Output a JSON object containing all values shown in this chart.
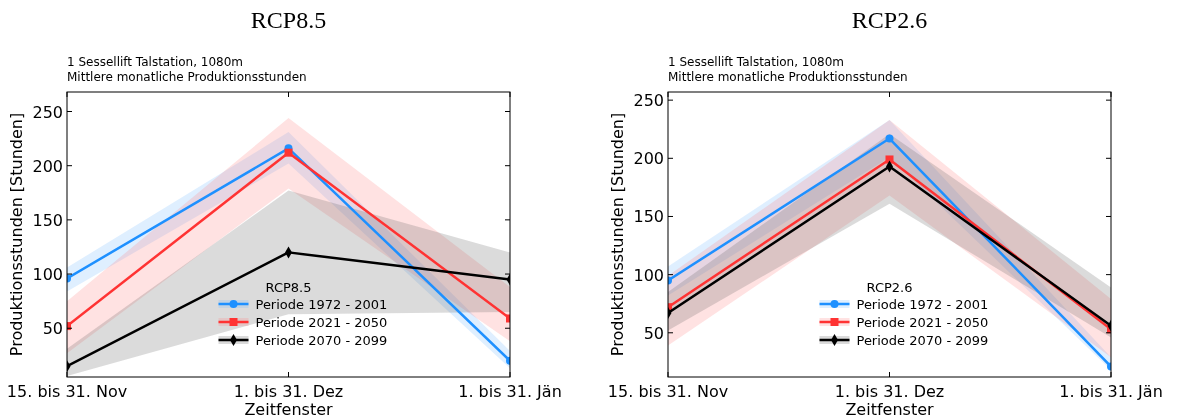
{
  "chart_data": [
    {
      "type": "line",
      "title": "RCP8.5",
      "subtitle": "1 Sessellift Talstation, 1080m\nMittlere monatliche Produktionsstunden",
      "xlabel": "Zeitfenster",
      "ylabel": "Produktionsstunden [Stunden]",
      "legend_title": "RCP8.5",
      "legend": "bottom",
      "categories": [
        "15. bis 31. Nov",
        "1. bis 31. Dez",
        "1. bis 31. Jän"
      ],
      "ylim": [
        5,
        268
      ],
      "yticks": [
        50,
        100,
        150,
        200,
        250
      ],
      "series": [
        {
          "name": "Periode 1972 - 2001",
          "color": "#1e90ff",
          "marker": "circle",
          "values": [
            96,
            216,
            20
          ],
          "lower": [
            84,
            202,
            13
          ],
          "upper": [
            106,
            231,
            29
          ]
        },
        {
          "name": "Periode 2021 - 2050",
          "color": "#ff3333",
          "marker": "square",
          "values": [
            52,
            212,
            59
          ],
          "lower": [
            27,
            179,
            38
          ],
          "upper": [
            75,
            244,
            88
          ]
        },
        {
          "name": "Periode 2070 - 2099",
          "color": "#000000",
          "marker": "diamond",
          "values": [
            15,
            120,
            95
          ],
          "lower": [
            6,
            63,
            65
          ],
          "upper": [
            31,
            177,
            120
          ]
        }
      ]
    },
    {
      "type": "line",
      "title": "RCP2.6",
      "subtitle": "1 Sessellift Talstation, 1080m\nMittlere monatliche Produktionsstunden",
      "xlabel": "Zeitfenster",
      "ylabel": "Produktionsstunden [Stunden]",
      "legend_title": "RCP2.6",
      "legend": "bottom",
      "categories": [
        "15. bis 31. Nov",
        "1. bis 31. Dez",
        "1. bis 31. Jän"
      ],
      "ylim": [
        12,
        257
      ],
      "yticks": [
        50,
        100,
        150,
        200,
        250
      ],
      "series": [
        {
          "name": "Periode 1972 - 2001",
          "color": "#1e90ff",
          "marker": "circle",
          "values": [
            95,
            217,
            21
          ],
          "lower": [
            82,
            201,
            18
          ],
          "upper": [
            107,
            233,
            29
          ]
        },
        {
          "name": "Periode 2021 - 2050",
          "color": "#ff3333",
          "marker": "square",
          "values": [
            72,
            199,
            53
          ],
          "lower": [
            39,
            168,
            29
          ],
          "upper": [
            99,
            233,
            79
          ]
        },
        {
          "name": "Periode 2070 - 2099",
          "color": "#000000",
          "marker": "diamond",
          "values": [
            67,
            193,
            56
          ],
          "lower": [
            52,
            161,
            46
          ],
          "upper": [
            85,
            221,
            89
          ]
        }
      ]
    }
  ]
}
